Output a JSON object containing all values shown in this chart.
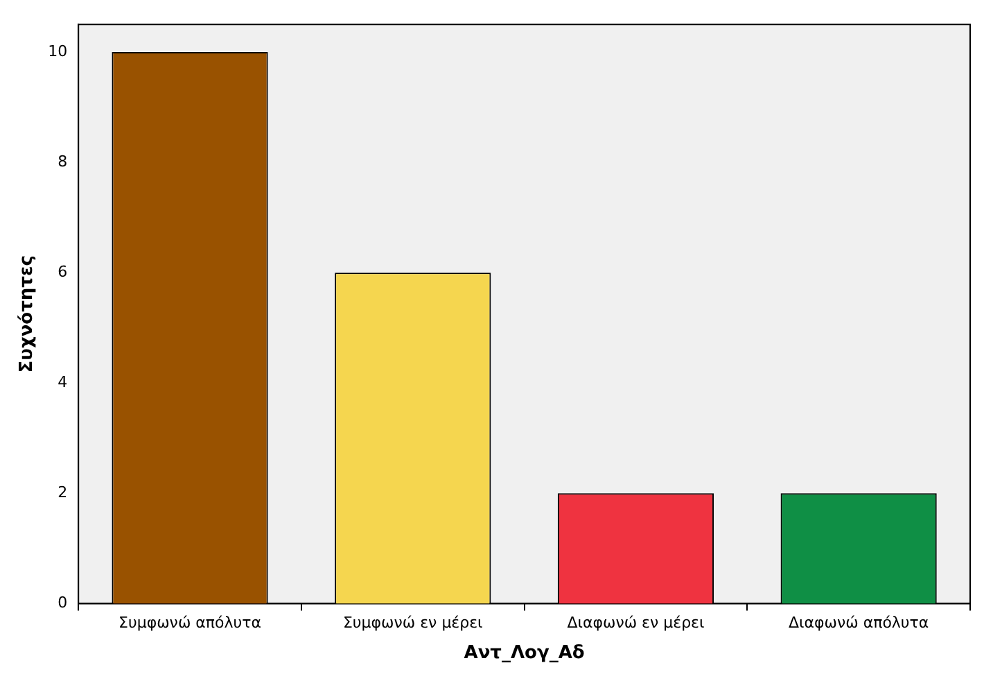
{
  "chart_data": {
    "type": "bar",
    "xlabel": "Αντ_Λογ_Αδ",
    "ylabel": "Συχνότητες",
    "categories": [
      "Συμφωνώ απόλυτα",
      "Συμφωνώ εν μέρει",
      "Διαφωνώ εν μέρει",
      "Διαφωνώ απόλυτα"
    ],
    "values": [
      10,
      6,
      2,
      2
    ],
    "colors": [
      "#995200",
      "#f5d64f",
      "#ef3340",
      "#0f8f45"
    ],
    "ylim": [
      0,
      10.5
    ],
    "yticks": [
      0,
      2,
      4,
      6,
      8,
      10
    ],
    "grid": false,
    "legend": false
  }
}
